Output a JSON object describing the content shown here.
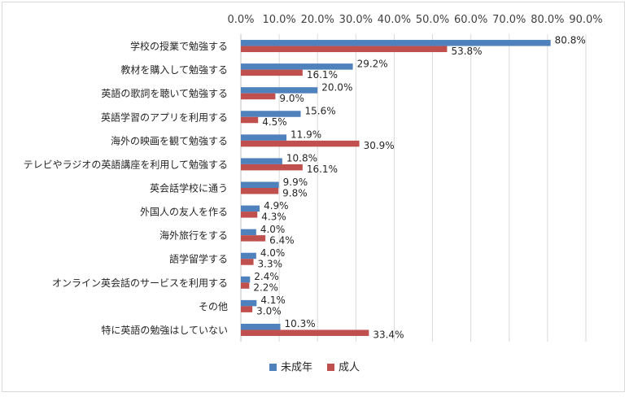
{
  "chart_data": {
    "type": "bar",
    "orientation": "horizontal",
    "x_axis_position": "top",
    "xlim": [
      0,
      90
    ],
    "x_ticks": [
      "0.0%",
      "10.0%",
      "20.0%",
      "30.0%",
      "40.0%",
      "50.0%",
      "60.0%",
      "70.0%",
      "80.0%",
      "90.0%"
    ],
    "grid": true,
    "legend_position": "bottom",
    "categories": [
      "学校の授業で勉強する",
      "教材を購入して勉強する",
      "英語の歌詞を聴いて勉強する",
      "英語学習のアプリを利用する",
      "海外の映画を観て勉強する",
      "テレビやラジオの英語講座を利用して勉強する",
      "英会話学校に通う",
      "外国人の友人を作る",
      "海外旅行をする",
      "語学留学する",
      "オンライン英会話のサービスを利用する",
      "その他",
      "特に英語の勉強はしていない"
    ],
    "series": [
      {
        "name": "未成年",
        "color": "#4f81bd",
        "values": [
          80.8,
          29.2,
          20.0,
          15.6,
          11.9,
          10.8,
          9.9,
          4.9,
          4.0,
          4.0,
          2.4,
          4.1,
          10.3
        ],
        "labels": [
          "80.8%",
          "29.2%",
          "20.0%",
          "15.6%",
          "11.9%",
          "10.8%",
          "9.9%",
          "4.9%",
          "4.0%",
          "4.0%",
          "2.4%",
          "4.1%",
          "10.3%"
        ]
      },
      {
        "name": "成人",
        "color": "#c0504d",
        "values": [
          53.8,
          16.1,
          9.0,
          4.5,
          30.9,
          16.1,
          9.8,
          4.3,
          6.4,
          3.3,
          2.2,
          3.0,
          33.4
        ],
        "labels": [
          "53.8%",
          "16.1%",
          "9.0%",
          "4.5%",
          "30.9%",
          "16.1%",
          "9.8%",
          "4.3%",
          "6.4%",
          "3.3%",
          "2.2%",
          "3.0%",
          "33.4%"
        ]
      }
    ]
  }
}
